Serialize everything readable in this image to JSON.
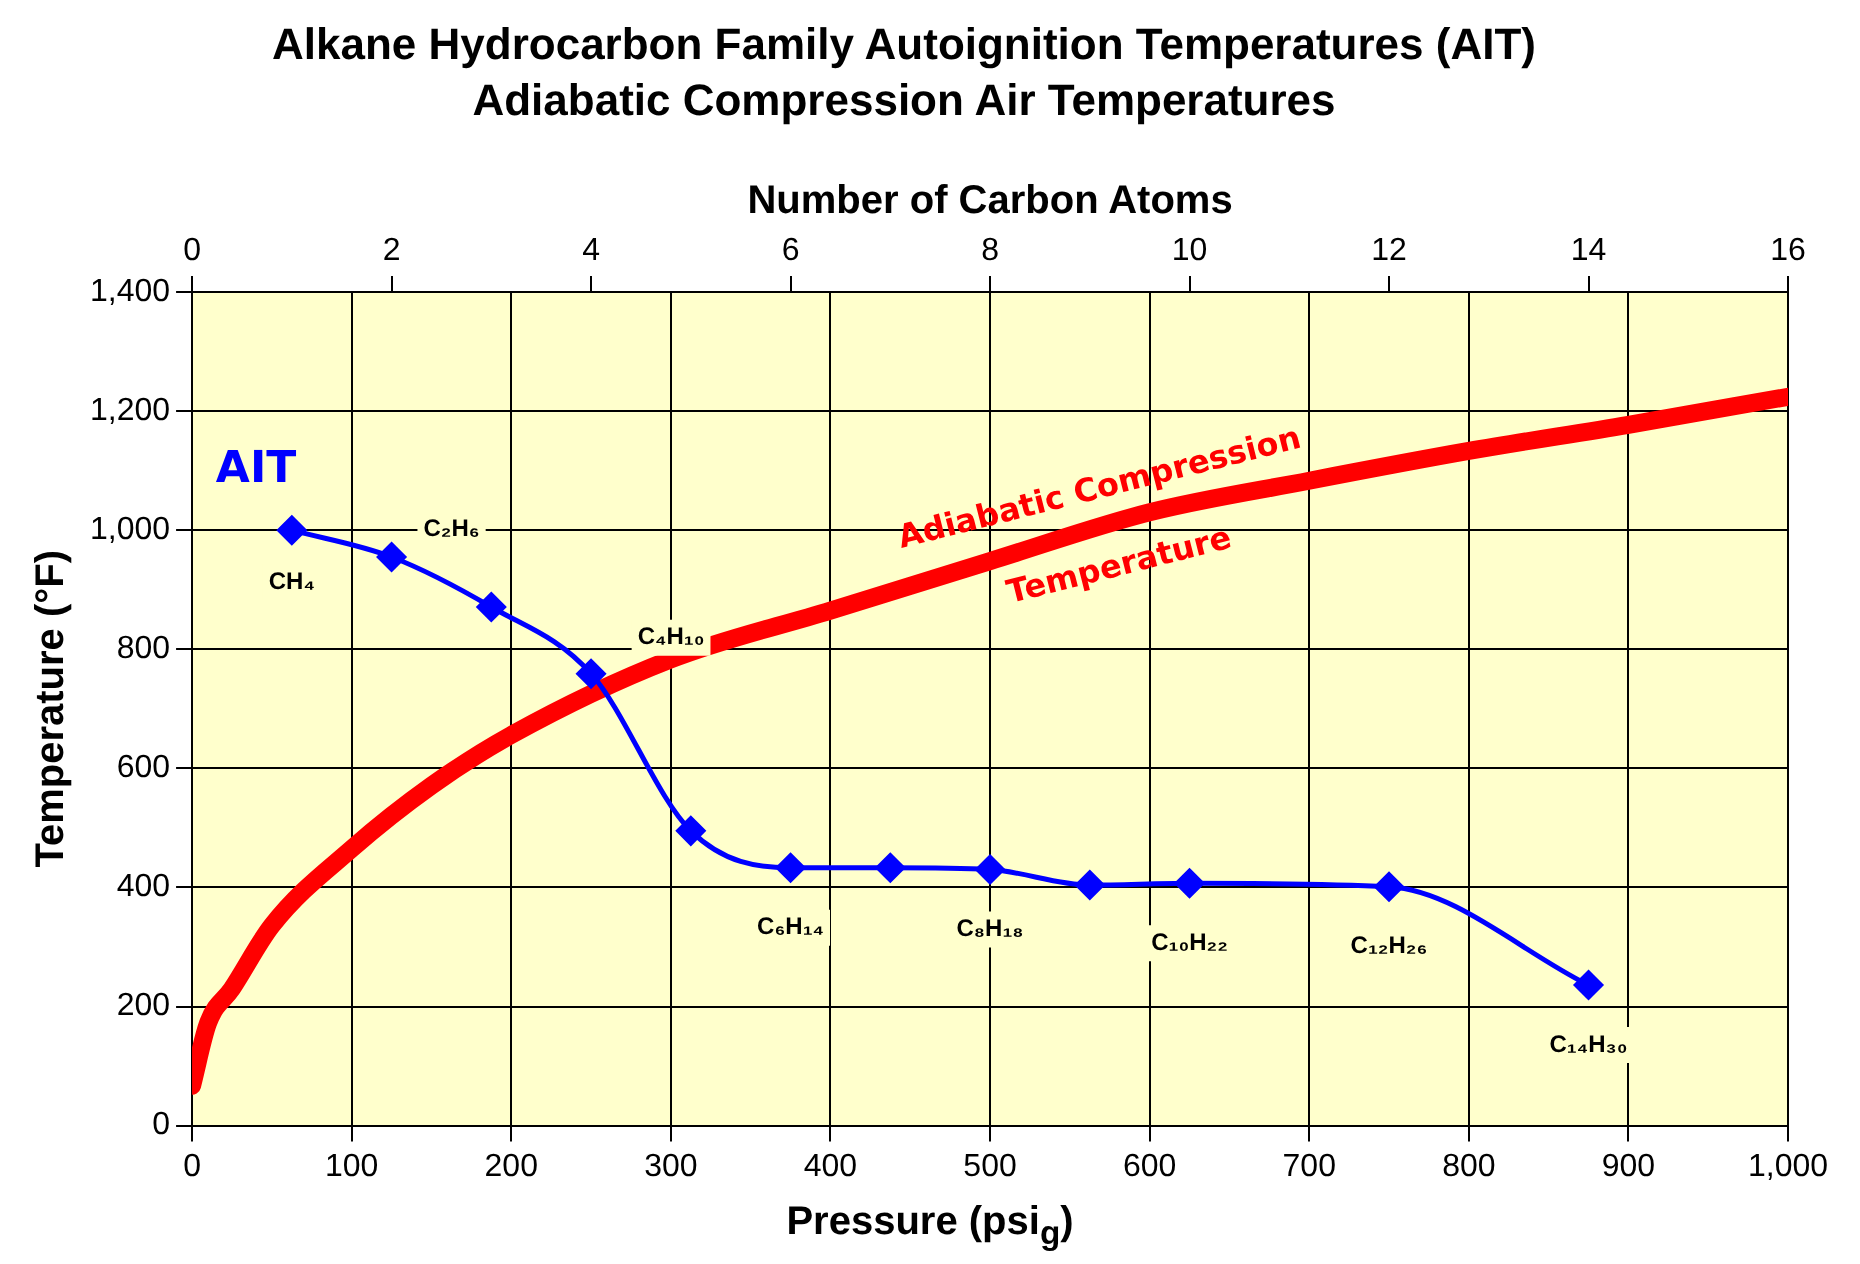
{
  "chart_data": {
    "type": "line",
    "title": "Alkane Hydrocarbon Family Autoignition Temperatures (AIT)",
    "subtitle": "Adiabatic Compression Air Temperatures",
    "xlabel": "Pressure (psi$_{g}$)",
    "x2label": "Number of Carbon Atoms",
    "ylabel": "Temperature (°F)",
    "xlim": [
      0,
      1000
    ],
    "xticks": [
      0,
      100,
      200,
      300,
      400,
      500,
      600,
      700,
      800,
      900,
      {
        "value": 1000,
        "label": "1,000"
      }
    ],
    "x2lim": [
      0,
      16
    ],
    "x2ticks": [
      0,
      2,
      4,
      6,
      8,
      10,
      12,
      14,
      16
    ],
    "ylim": [
      0,
      1400
    ],
    "yticks": [
      0,
      200,
      400,
      600,
      800,
      {
        "value": 1000,
        "label": "1,000"
      },
      {
        "value": 1200,
        "label": "1,200"
      },
      {
        "value": 1400,
        "label": "1,400"
      }
    ],
    "grid": true,
    "legend": false,
    "series": [
      {
        "name": "AIT",
        "color": "#0000ff",
        "axis": "x2",
        "marker": "diamond",
        "x": [
          1,
          2,
          3,
          4,
          5,
          6,
          7,
          8,
          9,
          10,
          12,
          14
        ],
        "values": [
          1000,
          955,
          871,
          759,
          495,
          433,
          433,
          430,
          404,
          407,
          401,
          236
        ],
        "value_labels": [
          "CH₄",
          "C₂H₆",
          null,
          "C₄H₁₀",
          null,
          "C₆H₁₄",
          null,
          "C₈H₁₈",
          null,
          "C₁₀H₂₂",
          "C₁₂H₂₆",
          "C₁₄H₃₀"
        ]
      },
      {
        "name": "Adiabatic Compression Temperature",
        "color": "#ff0000",
        "marker": "none",
        "x": [
          0,
          10,
          25,
          50,
          100,
          150,
          200,
          300,
          400,
          500,
          600,
          700,
          800,
          900,
          1000
        ],
        "values": [
          67,
          172,
          230,
          336,
          465,
          571,
          656,
          783,
          865,
          948,
          1030,
          1083,
          1133,
          1177,
          1224
        ]
      }
    ]
  }
}
